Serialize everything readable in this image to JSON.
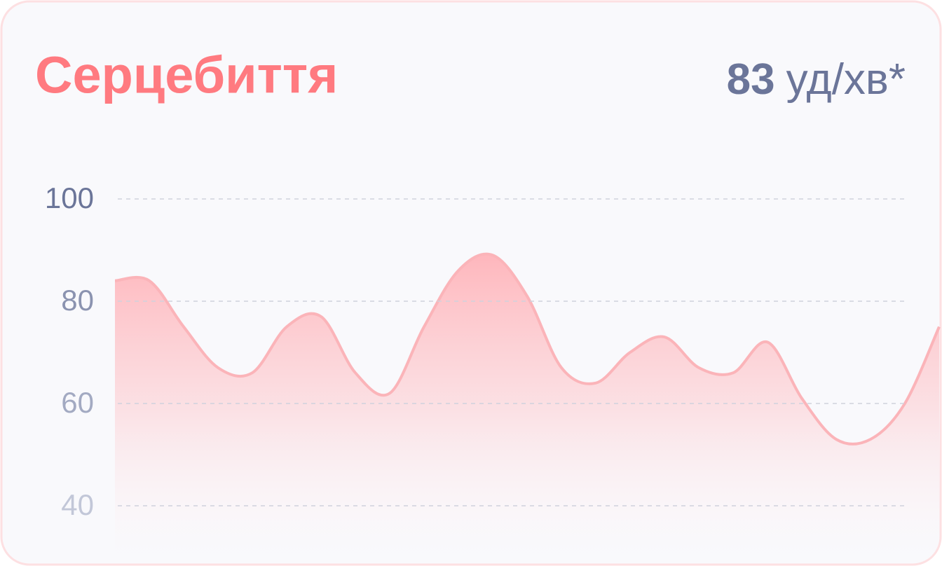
{
  "chart_data": {
    "type": "area",
    "title": "Серцебиття",
    "current_value": "83",
    "current_unit": "уд/хв*",
    "categories": [
      null,
      null,
      null,
      null,
      null,
      null,
      null,
      null,
      null,
      null,
      null,
      null,
      null,
      null,
      null,
      null,
      null,
      null,
      null,
      null,
      null,
      null,
      null,
      null,
      null
    ],
    "values": [
      84,
      84,
      75,
      67,
      66,
      75,
      77,
      66,
      62,
      75,
      86,
      89,
      81,
      67,
      64,
      70,
      73,
      67,
      66,
      72,
      61,
      53,
      53,
      60,
      75
    ],
    "color": "#fbb4b9",
    "ylim": [
      40,
      100
    ],
    "yticks": [
      40,
      60,
      80,
      100
    ],
    "grid": true
  }
}
